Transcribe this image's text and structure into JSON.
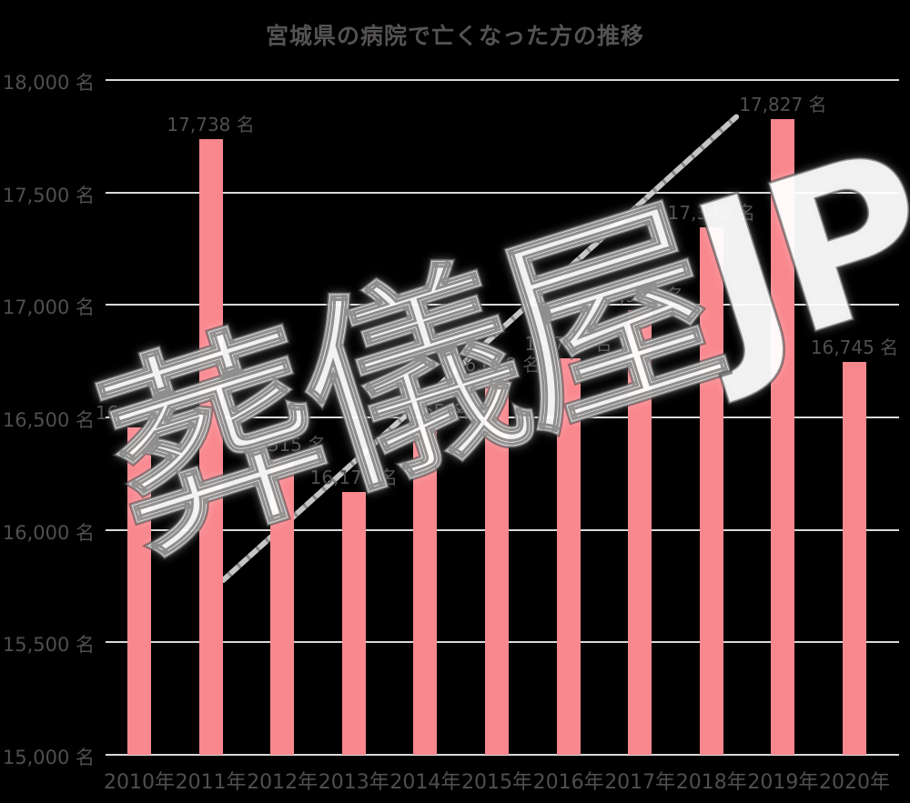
{
  "title": "宮城県の病院で亡くなった方の推移",
  "watermark_text": "葬儀屋JP",
  "chart_data": {
    "type": "bar",
    "title": "宮城県の病院で亡くなった方の推移",
    "categories": [
      "2010年",
      "2011年",
      "2012年",
      "2013年",
      "2014年",
      "2015年",
      "2016年",
      "2017年",
      "2018年",
      "2019年",
      "2020年"
    ],
    "values": [
      16455,
      17738,
      16315,
      16170,
      16465,
      16668,
      16763,
      16976,
      17345,
      17827,
      16745
    ],
    "value_labels": [
      "16,455 名",
      "17,738 名",
      "16,315 名",
      "16,170 名",
      "16,465 名",
      "16,668 名",
      "16,763 名",
      "16,976 名",
      "17,345 名",
      "17,827 名",
      "16,745 名"
    ],
    "xlabel": "",
    "ylabel": "",
    "ylim": [
      15000,
      18000
    ],
    "ytick_step": 500,
    "ytick_labels": [
      "15,000 名",
      "15,500 名",
      "16,000 名",
      "16,500 名",
      "17,000 名",
      "17,500 名",
      "18,000 名"
    ],
    "grid": true,
    "legend_position": "none",
    "bar_color": "#f9878e",
    "grid_color": "#d9d9d9",
    "text_color": "#4f4f4f",
    "trendline": true,
    "watermark": "葬儀屋JP"
  }
}
